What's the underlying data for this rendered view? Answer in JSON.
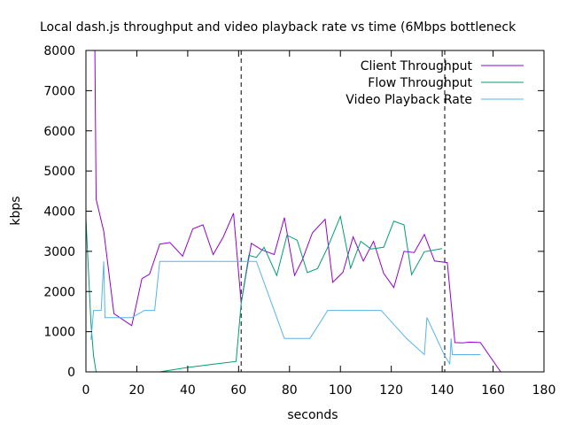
{
  "chart_data": {
    "type": "line",
    "title": "Local dash.js throughput and video playback rate vs time (6Mbps bottleneck",
    "xlabel": "seconds",
    "ylabel": "kbps",
    "xlim": [
      0,
      180
    ],
    "ylim": [
      0,
      8000
    ],
    "x_ticks": [
      0,
      20,
      40,
      60,
      80,
      100,
      120,
      140,
      160,
      180
    ],
    "y_ticks": [
      0,
      1000,
      2000,
      3000,
      4000,
      5000,
      6000,
      7000,
      8000
    ],
    "grid": false,
    "legend_position": "top-right",
    "vertical_markers": [
      61,
      141
    ],
    "series": [
      {
        "name": "Client Throughput",
        "color": "#9400d3",
        "points": [
          [
            3.5,
            8000
          ],
          [
            4,
            4300
          ],
          [
            7,
            3500
          ],
          [
            11,
            1450
          ],
          [
            18,
            1150
          ],
          [
            22,
            2320
          ],
          [
            25,
            2430
          ],
          [
            29,
            3180
          ],
          [
            33,
            3220
          ],
          [
            38,
            2880
          ],
          [
            42,
            3560
          ],
          [
            46,
            3660
          ],
          [
            50,
            2920
          ],
          [
            54,
            3360
          ],
          [
            58,
            3950
          ],
          [
            61,
            1720
          ],
          [
            65,
            3200
          ],
          [
            69,
            3040
          ],
          [
            74,
            2920
          ],
          [
            78,
            3840
          ],
          [
            82,
            2400
          ],
          [
            85,
            2780
          ],
          [
            89,
            3460
          ],
          [
            94,
            3800
          ],
          [
            97,
            2230
          ],
          [
            101,
            2480
          ],
          [
            105,
            3360
          ],
          [
            109,
            2760
          ],
          [
            113,
            3250
          ],
          [
            117,
            2450
          ],
          [
            121,
            2100
          ],
          [
            125,
            3000
          ],
          [
            129,
            2970
          ],
          [
            133,
            3420
          ],
          [
            137,
            2760
          ],
          [
            142,
            2720
          ],
          [
            145,
            730
          ],
          [
            148,
            720
          ],
          [
            151,
            740
          ],
          [
            155,
            730
          ],
          [
            163,
            0
          ],
          [
            169,
            0
          ]
        ]
      },
      {
        "name": "Flow Throughput",
        "color": "#009e73",
        "points": [
          [
            0,
            3820
          ],
          [
            2,
            1200
          ],
          [
            3,
            400
          ],
          [
            4,
            0
          ],
          [
            29,
            0
          ],
          [
            40,
            110
          ],
          [
            50,
            190
          ],
          [
            59,
            260
          ],
          [
            61,
            1700
          ],
          [
            64,
            2900
          ],
          [
            67,
            2850
          ],
          [
            70,
            3100
          ],
          [
            75,
            2400
          ],
          [
            79,
            3400
          ],
          [
            83,
            3280
          ],
          [
            87,
            2470
          ],
          [
            91,
            2570
          ],
          [
            95,
            3100
          ],
          [
            100,
            3870
          ],
          [
            104,
            2580
          ],
          [
            108,
            3250
          ],
          [
            112,
            3060
          ],
          [
            117,
            3100
          ],
          [
            121,
            3750
          ],
          [
            125,
            3660
          ],
          [
            128,
            2420
          ],
          [
            133,
            2990
          ],
          [
            140,
            3070
          ]
        ]
      },
      {
        "name": "Video Playback Rate",
        "color": "#56b4e9",
        "points": [
          [
            2,
            800
          ],
          [
            3,
            1530
          ],
          [
            6,
            1530
          ],
          [
            7,
            2750
          ],
          [
            7.5,
            1350
          ],
          [
            12,
            1350
          ],
          [
            18,
            1350
          ],
          [
            23,
            1530
          ],
          [
            27,
            1530
          ],
          [
            29,
            2750
          ],
          [
            67,
            2750
          ],
          [
            78,
            830
          ],
          [
            88,
            830
          ],
          [
            95,
            1530
          ],
          [
            116,
            1530
          ],
          [
            126,
            830
          ],
          [
            133,
            430
          ],
          [
            134,
            1350
          ],
          [
            141,
            400
          ],
          [
            143,
            200
          ],
          [
            143.5,
            830
          ],
          [
            144,
            430
          ],
          [
            155,
            430
          ]
        ]
      }
    ]
  }
}
